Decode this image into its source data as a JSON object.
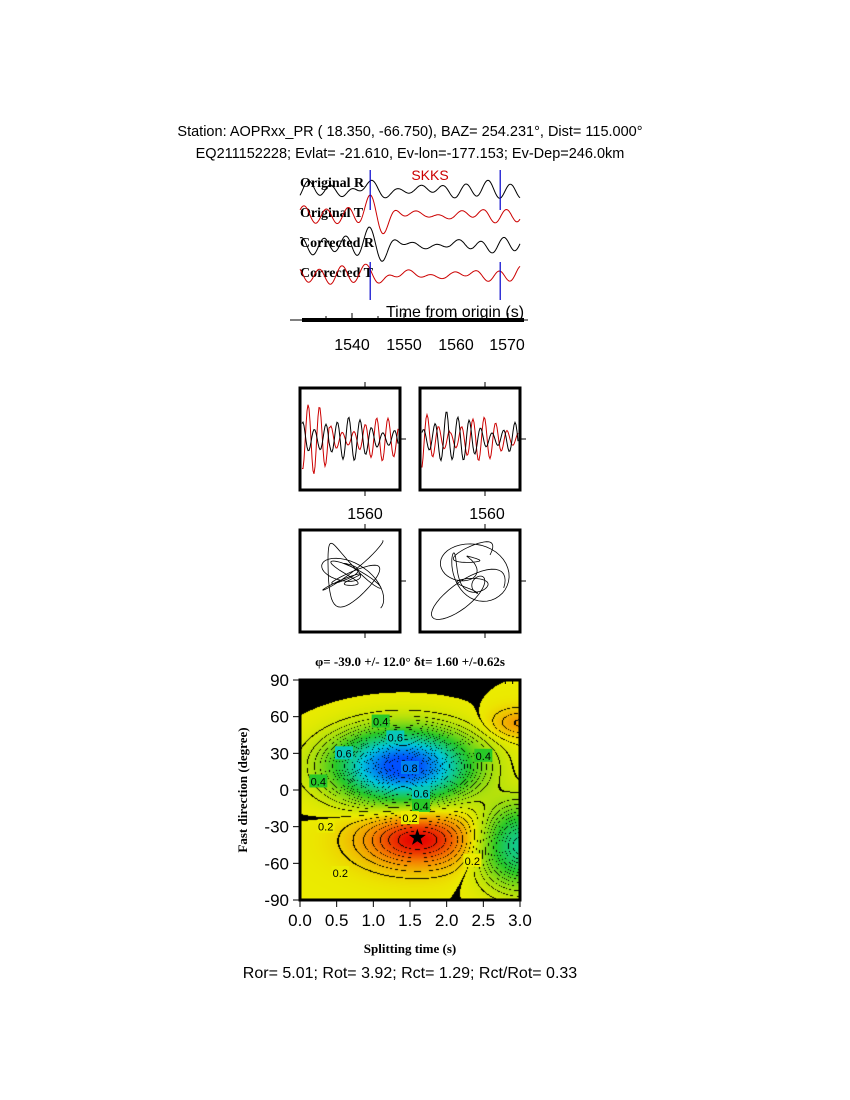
{
  "header": {
    "line1": "Station: AOPRxx_PR (  18.350,  -66.750), BAZ=  254.231°, Dist=  115.000°",
    "line2": "EQ211152228; Evlat= -21.610, Ev-lon=-177.153; Ev-Dep=246.0km"
  },
  "chart_data": [
    {
      "type": "line",
      "phase_label": "SKKS",
      "trace_labels": [
        "Original R",
        "Original T",
        "Corrected R",
        "Corrected T"
      ],
      "trace_colors": [
        "#000000",
        "#cc0000",
        "#000000",
        "#cc0000"
      ],
      "xlabel": "Time from origin (s)",
      "xticks": [
        1540,
        1550,
        1560,
        1570
      ],
      "xlim": [
        1530,
        1574
      ],
      "window_markers": [
        1543.5,
        1568.5
      ],
      "marker_color": "#0000cc"
    },
    {
      "type": "line",
      "panels": [
        "original-particle-waveforms",
        "corrected-particle-waveforms"
      ],
      "xtick_labels": [
        "1560",
        "1560"
      ]
    },
    {
      "type": "scatter",
      "panels": [
        "original-particle-motion",
        "corrected-particle-motion"
      ]
    },
    {
      "type": "heatmap",
      "title": "φ= -39.0 +/- 12.0° δt= 1.60 +/-0.62s",
      "xlabel": "Splitting time (s)",
      "ylabel": "Fast direction (degree)",
      "xlim": [
        0,
        3
      ],
      "ylim": [
        -90,
        90
      ],
      "xticks": [
        "0.0",
        "0.5",
        "1.0",
        "1.5",
        "2.0",
        "2.5",
        "3.0"
      ],
      "yticks": [
        "90",
        "60",
        "30",
        "0",
        "-30",
        "-60",
        "-90"
      ],
      "best_fit": {
        "dt": 1.6,
        "phi": -39.0
      },
      "contour_labels": [
        {
          "text": "0.4",
          "x": 1.1,
          "y": 56
        },
        {
          "text": "0.6",
          "x": 1.3,
          "y": 43
        },
        {
          "text": "0.6",
          "x": 0.6,
          "y": 30
        },
        {
          "text": "0.8",
          "x": 1.5,
          "y": 18
        },
        {
          "text": "0.4",
          "x": 2.5,
          "y": 28
        },
        {
          "text": "0.4",
          "x": 0.25,
          "y": 7
        },
        {
          "text": "0.6",
          "x": 1.65,
          "y": -3
        },
        {
          "text": "0.4",
          "x": 1.65,
          "y": -13
        },
        {
          "text": "0.2",
          "x": 1.5,
          "y": -23
        },
        {
          "text": "0.2",
          "x": 0.35,
          "y": -30
        },
        {
          "text": "0.2",
          "x": 2.35,
          "y": -58
        },
        {
          "text": "0.2",
          "x": 0.55,
          "y": -68
        }
      ]
    }
  ],
  "footer": "Ror= 5.01; Rot= 3.92; Rct= 1.29; Rct/Rot= 0.33"
}
